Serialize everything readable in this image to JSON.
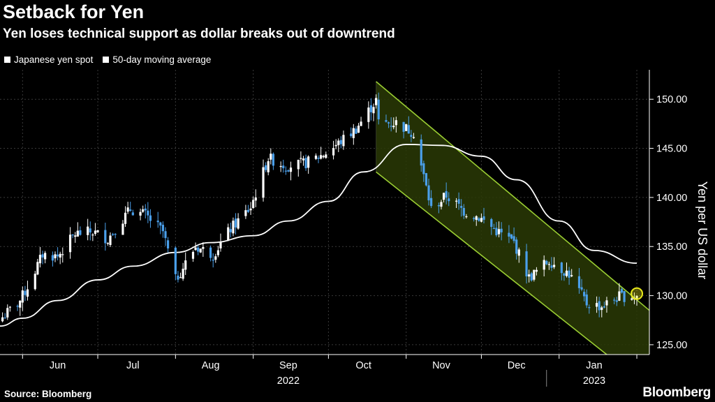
{
  "header": {
    "title": "Setback for Yen",
    "subtitle": "Yen loses technical support as dollar breaks out of downtrend"
  },
  "footer": {
    "source": "Source: Bloomberg",
    "brand": "Bloomberg"
  },
  "colors": {
    "background": "#000000",
    "up_candle": "#ffffff",
    "down_candle": "#4a9fea",
    "moving_average": "#ffffff",
    "channel_line": "#9acd32",
    "channel_fill": "#2a3a06",
    "marker": "#e8e81a",
    "grid": "#3a3a3a"
  },
  "chart_data": {
    "type": "candlestick",
    "title": "Setback for Yen",
    "subtitle": "Yen loses technical support as dollar breaks out of downtrend",
    "ylabel": "Yen per US dollar",
    "ylim": [
      124,
      153
    ],
    "y_ticks": [
      "125.00",
      "130.00",
      "135.00",
      "140.00",
      "145.00",
      "150.00"
    ],
    "y_tick_values": [
      125,
      130,
      135,
      140,
      145,
      150
    ],
    "x_ticks": [
      "Jun",
      "Jul",
      "Aug",
      "Sep",
      "Oct",
      "Nov",
      "Dec",
      "Jan"
    ],
    "x_tick_dates": [
      "2022-06-15",
      "2022-07-15",
      "2022-08-15",
      "2022-09-15",
      "2022-10-15",
      "2022-11-15",
      "2022-12-15",
      "2023-01-15"
    ],
    "x_year_labels": [
      {
        "label": "2022",
        "date": "2022-09-15"
      },
      {
        "label": "2023",
        "date": "2023-01-15"
      }
    ],
    "xlim": [
      "2022-05-23",
      "2023-02-06"
    ],
    "grid": true,
    "legend_position": "top-left",
    "legend": [
      "Japanese yen spot",
      "50-day moving average"
    ],
    "series": [
      {
        "name": "Japanese yen spot",
        "kind": "candlestick",
        "close_anchors": [
          [
            "2022-05-24",
            127.8
          ],
          [
            "2022-05-31",
            129.5
          ],
          [
            "2022-06-03",
            130.9
          ],
          [
            "2022-06-09",
            134.2
          ],
          [
            "2022-06-15",
            134.0
          ],
          [
            "2022-06-22",
            136.3
          ],
          [
            "2022-06-29",
            136.5
          ],
          [
            "2022-07-05",
            135.8
          ],
          [
            "2022-07-14",
            138.8
          ],
          [
            "2022-07-20",
            138.2
          ],
          [
            "2022-07-27",
            136.5
          ],
          [
            "2022-08-01",
            131.6
          ],
          [
            "2022-08-09",
            135.0
          ],
          [
            "2022-08-16",
            134.2
          ],
          [
            "2022-08-23",
            136.8
          ],
          [
            "2022-08-31",
            139.0
          ],
          [
            "2022-09-07",
            144.0
          ],
          [
            "2022-09-14",
            143.2
          ],
          [
            "2022-09-22",
            143.5
          ],
          [
            "2022-09-29",
            144.4
          ],
          [
            "2022-10-05",
            145.5
          ],
          [
            "2022-10-12",
            147.0
          ],
          [
            "2022-10-20",
            149.9
          ],
          [
            "2022-10-21",
            147.6
          ],
          [
            "2022-10-28",
            147.6
          ],
          [
            "2022-11-04",
            146.6
          ],
          [
            "2022-11-11",
            138.8
          ],
          [
            "2022-11-17",
            140.2
          ],
          [
            "2022-11-24",
            138.6
          ],
          [
            "2022-11-30",
            138.0
          ],
          [
            "2022-12-07",
            136.6
          ],
          [
            "2022-12-14",
            135.4
          ],
          [
            "2022-12-20",
            131.8
          ],
          [
            "2022-12-28",
            133.6
          ],
          [
            "2023-01-05",
            132.2
          ],
          [
            "2023-01-12",
            129.2
          ],
          [
            "2023-01-18",
            128.9
          ],
          [
            "2023-01-25",
            129.9
          ],
          [
            "2023-02-01",
            130.0
          ]
        ]
      },
      {
        "name": "50-day moving average",
        "kind": "line",
        "points": [
          [
            "2022-05-23",
            126.9
          ],
          [
            "2022-06-01",
            127.7
          ],
          [
            "2022-06-15",
            129.5
          ],
          [
            "2022-07-01",
            131.6
          ],
          [
            "2022-07-15",
            133.0
          ],
          [
            "2022-08-01",
            134.4
          ],
          [
            "2022-08-15",
            135.4
          ],
          [
            "2022-09-01",
            136.1
          ],
          [
            "2022-09-15",
            137.6
          ],
          [
            "2022-10-01",
            139.6
          ],
          [
            "2022-10-15",
            142.6
          ],
          [
            "2022-11-01",
            145.4
          ],
          [
            "2022-11-15",
            145.3
          ],
          [
            "2022-12-01",
            144.2
          ],
          [
            "2022-12-15",
            141.8
          ],
          [
            "2023-01-01",
            137.6
          ],
          [
            "2023-01-15",
            134.6
          ],
          [
            "2023-02-01",
            133.3
          ]
        ]
      }
    ],
    "channel": {
      "upper": [
        [
          "2022-10-20",
          151.8
        ],
        [
          "2023-02-06",
          128.5
        ]
      ],
      "lower": [
        [
          "2022-10-20",
          142.6
        ],
        [
          "2023-01-20",
          124.0
        ]
      ]
    },
    "highlight_point": {
      "date": "2023-02-01",
      "value": 130.2
    }
  }
}
